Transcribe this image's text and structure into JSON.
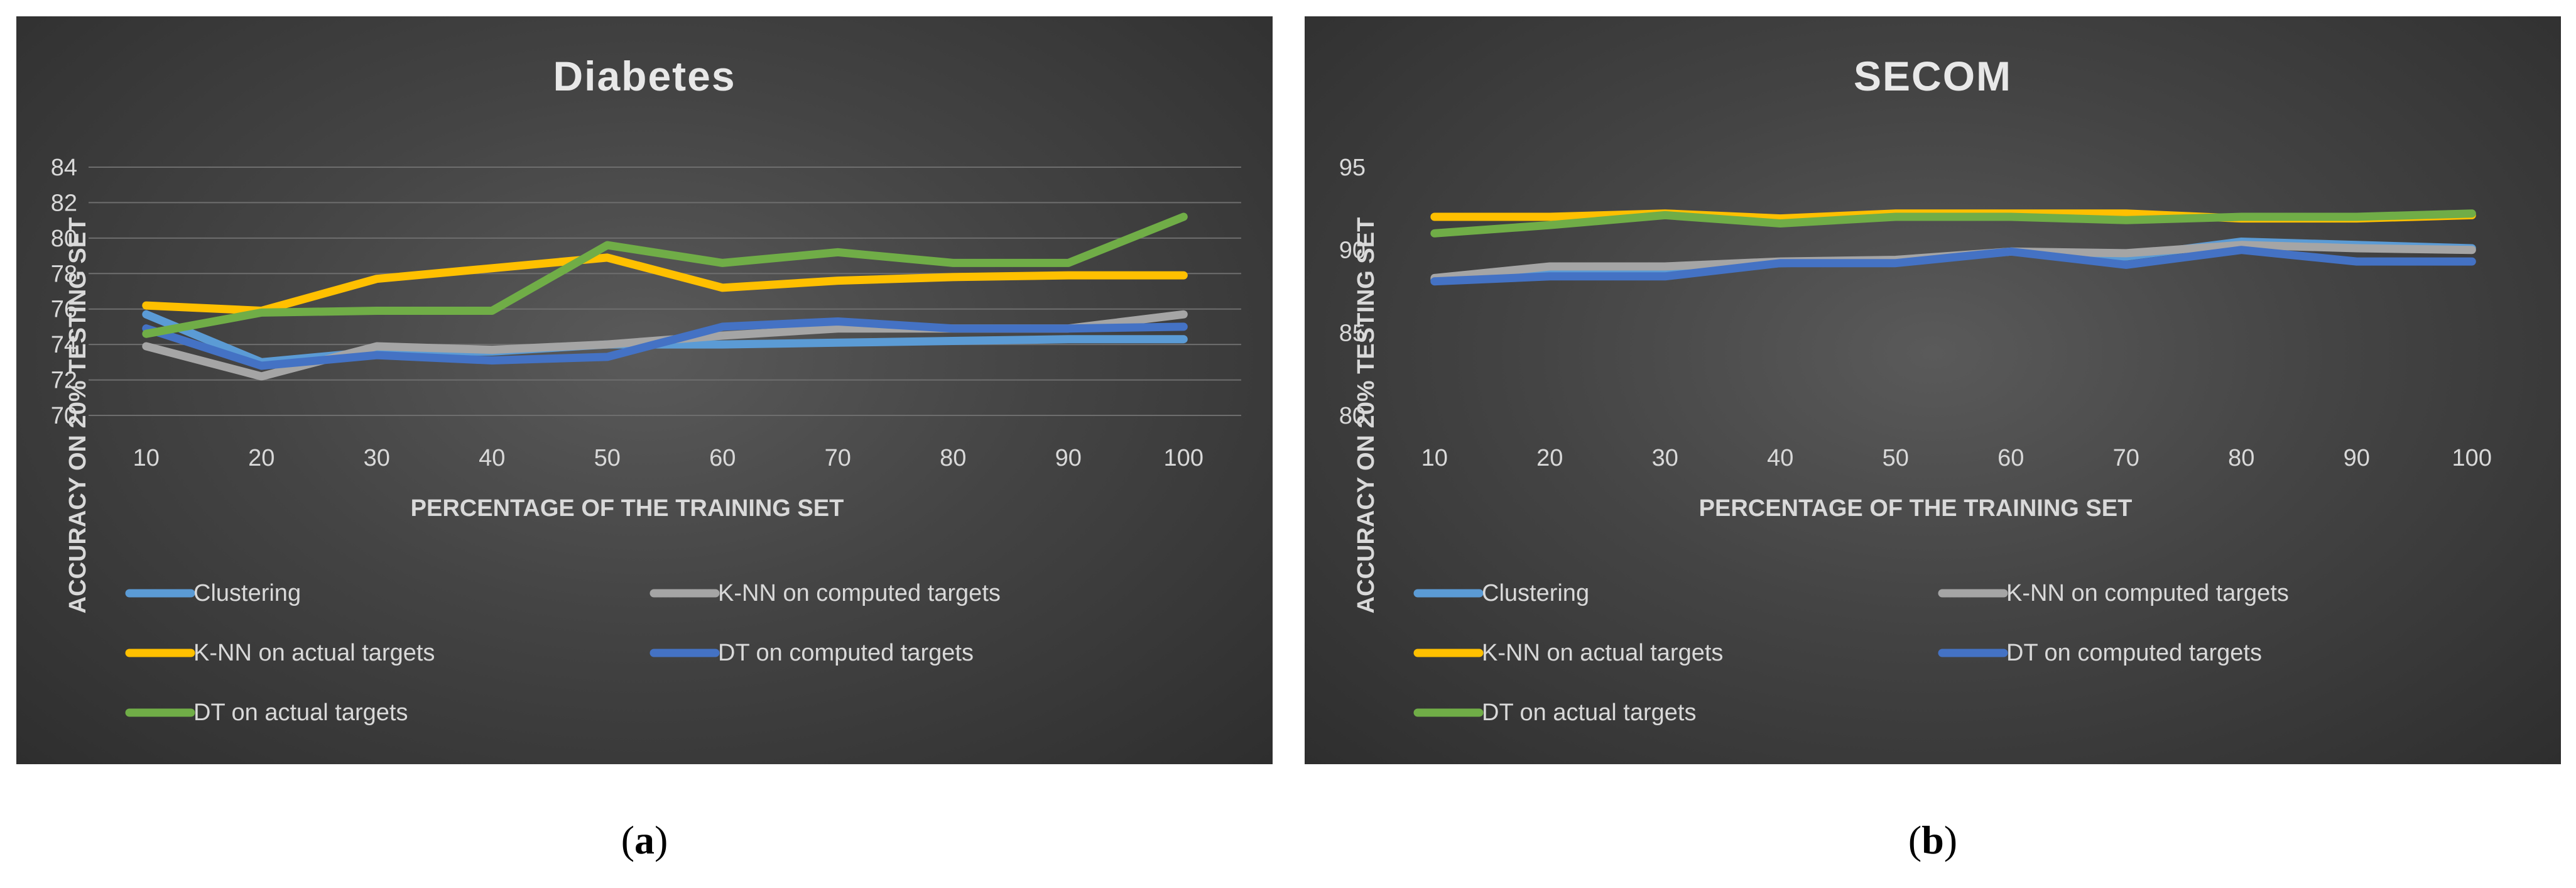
{
  "chart_data": [
    {
      "type": "line",
      "title": "Diabetes",
      "xlabel": "PERCENTAGE OF THE TRAINING SET",
      "ylabel": "ACCURACY ON 20% TESTING SET",
      "categories": [
        "10",
        "20",
        "30",
        "40",
        "50",
        "60",
        "70",
        "80",
        "90",
        "100"
      ],
      "ylim": [
        70,
        84
      ],
      "yticks": [
        70,
        72,
        74,
        76,
        78,
        80,
        82,
        84
      ],
      "grid": true,
      "legend_position": "bottom",
      "series": [
        {
          "name": "Clustering",
          "color": "#5b9bd5",
          "values": [
            75.7,
            73.0,
            73.6,
            73.6,
            74.0,
            74.0,
            74.1,
            74.2,
            74.3,
            74.3
          ]
        },
        {
          "name": "K-NN on computed targets",
          "color": "#a5a5a5",
          "values": [
            73.9,
            72.2,
            73.9,
            73.7,
            74.0,
            74.5,
            74.9,
            74.9,
            74.9,
            75.7
          ]
        },
        {
          "name": "K-NN on actual targets",
          "color": "#ffc000",
          "values": [
            76.2,
            75.9,
            77.7,
            78.3,
            78.9,
            77.2,
            77.6,
            77.8,
            77.9,
            77.9
          ]
        },
        {
          "name": "DT on computed targets",
          "color": "#4472c4",
          "values": [
            74.9,
            72.8,
            73.4,
            73.1,
            73.3,
            75.0,
            75.3,
            74.9,
            74.9,
            75.0
          ]
        },
        {
          "name": "DT on actual targets",
          "color": "#70ad47",
          "values": [
            74.6,
            75.8,
            75.9,
            75.9,
            79.6,
            78.6,
            79.2,
            78.6,
            78.6,
            81.2
          ]
        }
      ]
    },
    {
      "type": "line",
      "title": "SECOM",
      "xlabel": "PERCENTAGE OF THE TRAINING SET",
      "ylabel": "ACCURACY ON 20% TESTING SET",
      "categories": [
        "10",
        "20",
        "30",
        "40",
        "50",
        "60",
        "70",
        "80",
        "90",
        "100"
      ],
      "ylim": [
        80,
        95
      ],
      "yticks": [
        80,
        85,
        90,
        95
      ],
      "grid": false,
      "legend_position": "bottom",
      "series": [
        {
          "name": "Clustering",
          "color": "#5b9bd5",
          "values": [
            88.2,
            88.6,
            88.6,
            89.2,
            89.3,
            89.9,
            89.6,
            90.5,
            90.3,
            90.1
          ]
        },
        {
          "name": "K-NN on computed targets",
          "color": "#a5a5a5",
          "values": [
            88.3,
            89.0,
            89.0,
            89.3,
            89.4,
            89.9,
            89.8,
            90.3,
            90.1,
            90.0
          ]
        },
        {
          "name": "K-NN on actual targets",
          "color": "#ffc000",
          "values": [
            92.0,
            92.0,
            92.2,
            91.9,
            92.2,
            92.2,
            92.2,
            91.9,
            91.9,
            92.1
          ]
        },
        {
          "name": "DT on computed targets",
          "color": "#4472c4",
          "values": [
            88.1,
            88.4,
            88.4,
            89.2,
            89.2,
            89.9,
            89.1,
            90.0,
            89.3,
            89.3
          ]
        },
        {
          "name": "DT on actual targets",
          "color": "#70ad47",
          "values": [
            91.0,
            91.5,
            92.1,
            91.6,
            92.0,
            92.0,
            91.8,
            92.0,
            92.0,
            92.2
          ]
        }
      ]
    }
  ],
  "captions": [
    "a",
    "b"
  ]
}
